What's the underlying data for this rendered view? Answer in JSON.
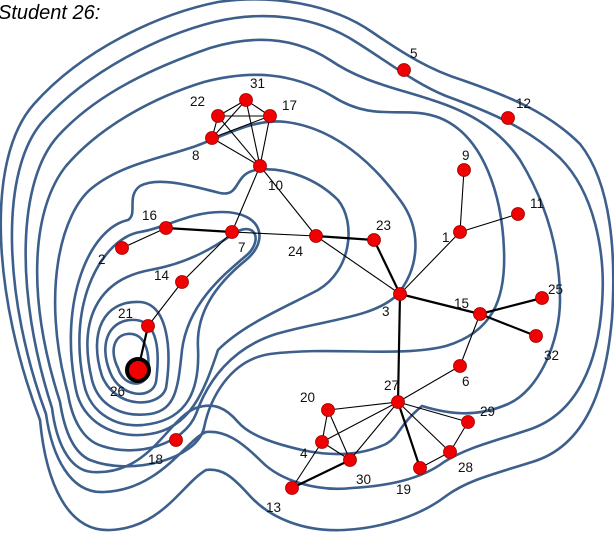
{
  "caption": "Student 26:",
  "focus_node": "26",
  "colors": {
    "contour": "#3d5f8c",
    "node": "#f00000",
    "edge": "#000000"
  },
  "nodes": [
    "1",
    "2",
    "3",
    "4",
    "5",
    "6",
    "7",
    "8",
    "9",
    "10",
    "11",
    "12",
    "13",
    "14",
    "15",
    "16",
    "17",
    "18",
    "19",
    "20",
    "21",
    "22",
    "23",
    "24",
    "25",
    "26",
    "27",
    "28",
    "29",
    "30",
    "31",
    "32"
  ],
  "edges": [
    [
      "26",
      "21",
      "strong"
    ],
    [
      "21",
      "14",
      "normal"
    ],
    [
      "14",
      "7",
      "normal"
    ],
    [
      "16",
      "7",
      "strong"
    ],
    [
      "16",
      "2",
      "normal"
    ],
    [
      "7",
      "24",
      "normal"
    ],
    [
      "7",
      "10",
      "normal"
    ],
    [
      "10",
      "22",
      "normal"
    ],
    [
      "10",
      "31",
      "normal"
    ],
    [
      "10",
      "17",
      "normal"
    ],
    [
      "10",
      "8",
      "normal"
    ],
    [
      "22",
      "31",
      "normal"
    ],
    [
      "22",
      "17",
      "normal"
    ],
    [
      "22",
      "8",
      "normal"
    ],
    [
      "31",
      "17",
      "normal"
    ],
    [
      "31",
      "8",
      "normal"
    ],
    [
      "17",
      "8",
      "normal"
    ],
    [
      "10",
      "24",
      "normal"
    ],
    [
      "24",
      "23",
      "strong"
    ],
    [
      "24",
      "3",
      "normal"
    ],
    [
      "23",
      "3",
      "strong"
    ],
    [
      "3",
      "1",
      "normal"
    ],
    [
      "1",
      "9",
      "normal"
    ],
    [
      "1",
      "11",
      "normal"
    ],
    [
      "3",
      "15",
      "strong"
    ],
    [
      "15",
      "25",
      "strong"
    ],
    [
      "15",
      "32",
      "strong"
    ],
    [
      "15",
      "6",
      "normal"
    ],
    [
      "3",
      "27",
      "strong"
    ],
    [
      "27",
      "6",
      "normal"
    ],
    [
      "27",
      "20",
      "normal"
    ],
    [
      "27",
      "4",
      "normal"
    ],
    [
      "27",
      "30",
      "normal"
    ],
    [
      "27",
      "19",
      "strong"
    ],
    [
      "27",
      "28",
      "normal"
    ],
    [
      "27",
      "29",
      "normal"
    ],
    [
      "20",
      "4",
      "normal"
    ],
    [
      "20",
      "30",
      "normal"
    ],
    [
      "4",
      "30",
      "normal"
    ],
    [
      "4",
      "13",
      "normal"
    ],
    [
      "13",
      "30",
      "strong"
    ],
    [
      "19",
      "28",
      "normal"
    ],
    [
      "28",
      "29",
      "normal"
    ]
  ]
}
